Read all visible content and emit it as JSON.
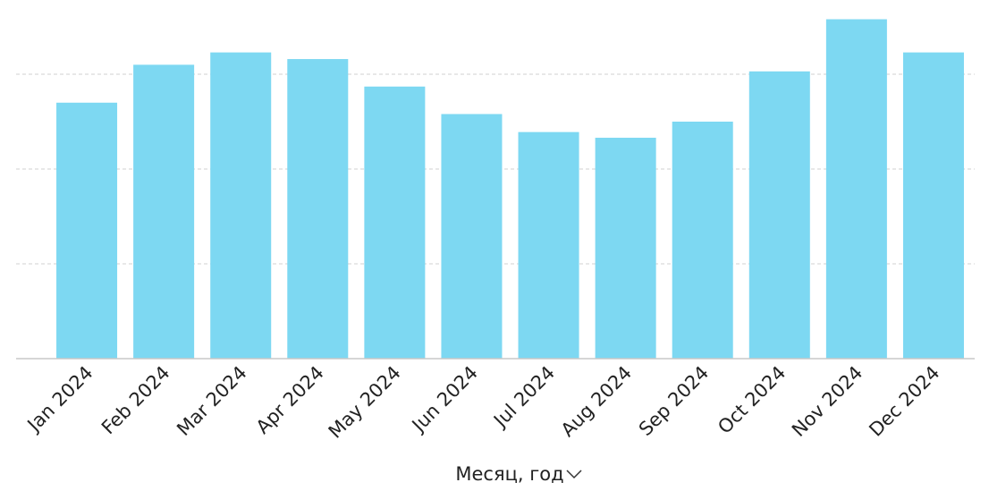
{
  "chart_data": {
    "type": "bar",
    "x_label": "Месяц, год",
    "categories": [
      "Jan 2024",
      "Feb 2024",
      "Mar 2024",
      "Apr 2024",
      "May 2024",
      "Jun 2024",
      "Jul 2024",
      "Aug 2024",
      "Sep 2024",
      "Oct 2024",
      "Nov 2024",
      "Dec 2024"
    ],
    "values": [
      2.7,
      3.1,
      3.23,
      3.16,
      2.87,
      2.58,
      2.39,
      2.33,
      2.5,
      3.03,
      3.58,
      3.23
    ],
    "color": "#7dd8f2",
    "ylim": [
      0,
      3.6
    ],
    "grid_lines": [
      1,
      2,
      3
    ],
    "grid": true
  }
}
